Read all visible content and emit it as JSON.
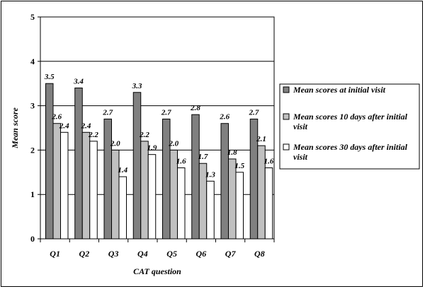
{
  "chart_data": {
    "type": "bar",
    "title": "",
    "xlabel": "CAT question",
    "ylabel": "Mean score",
    "ylim": [
      0,
      5
    ],
    "yticks": [
      0,
      1,
      2,
      3,
      4,
      5
    ],
    "grid": true,
    "legend_position": "right",
    "categories": [
      "Q1",
      "Q2",
      "Q3",
      "Q4",
      "Q5",
      "Q6",
      "Q7",
      "Q8"
    ],
    "series": [
      {
        "name": "Mean scores at initial visit",
        "color": "#808080",
        "values": [
          3.5,
          3.4,
          2.7,
          3.3,
          2.7,
          2.8,
          2.6,
          2.7
        ],
        "labels": [
          "3.5",
          "3.4",
          "2.7",
          "3.3",
          "2.7",
          "2.8",
          "2.6",
          "2.7"
        ]
      },
      {
        "name": "Mean scores 10 days after initial visit",
        "legend_lines": [
          "Mean scores 10 days after initial",
          "visit"
        ],
        "color": "#c0c0c0",
        "values": [
          2.6,
          2.4,
          2.0,
          2.2,
          2.0,
          1.7,
          1.8,
          2.1
        ],
        "labels": [
          "2.6",
          "2.4",
          "2.0",
          "2.2",
          "2.0",
          "1.7",
          "1.8",
          "2.1"
        ]
      },
      {
        "name": "Mean scores 30 days after initial visit",
        "legend_lines": [
          "Mean scores 30 days after initial",
          "visit"
        ],
        "color": "#ffffff",
        "values": [
          2.4,
          2.2,
          1.4,
          1.9,
          1.6,
          1.3,
          1.5,
          1.6
        ],
        "labels": [
          "2.4",
          "2.2",
          "1.4",
          "1.9",
          "1.6",
          "1.3",
          "1.5",
          "1.6"
        ]
      }
    ]
  }
}
